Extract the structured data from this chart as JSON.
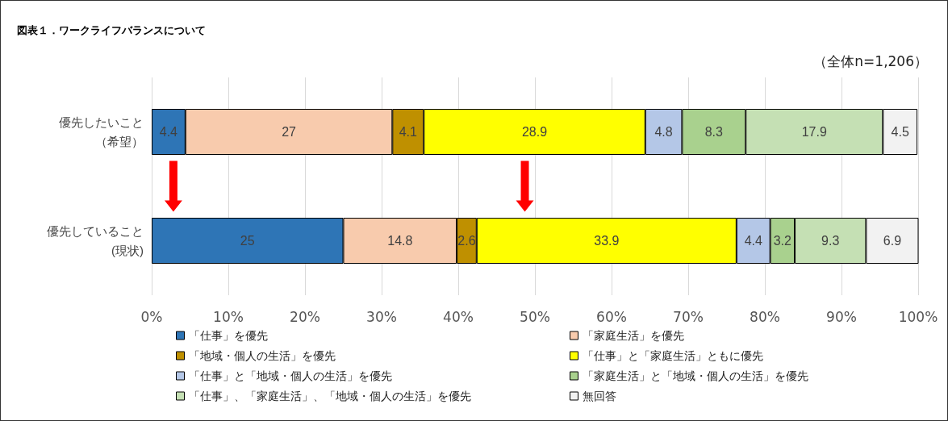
{
  "chart_data": {
    "type": "bar",
    "orientation": "horizontal",
    "stacked": true,
    "title": "図表１．ワークライフバランスについて",
    "annotations": [
      "（全体n=1,206）"
    ],
    "categories": [
      "優先したいこと（希望）",
      "優先していること(現状)"
    ],
    "series": [
      {
        "name": "「仕事」を優先",
        "color": "#2e75b6",
        "values": [
          4.4,
          25
        ]
      },
      {
        "name": "「家庭生活」を優先",
        "color": "#f8cbad",
        "values": [
          27,
          14.8
        ]
      },
      {
        "name": "「地域・個人の生活」を優先",
        "color": "#bf9000",
        "values": [
          4.1,
          2.6
        ]
      },
      {
        "name": "「仕事」と「家庭生活」ともに優先",
        "color": "#ffff00",
        "values": [
          28.9,
          33.9
        ]
      },
      {
        "name": "「仕事」と「地域・個人の生活」を優先",
        "color": "#b4c7e7",
        "values": [
          4.8,
          4.4
        ]
      },
      {
        "name": "「家庭生活」と「地域・個人の生活」を優先",
        "color": "#a9d18e",
        "values": [
          8.3,
          3.2
        ]
      },
      {
        "name": "「仕事」、「家庭生活」、「地域・個人の生活」を優先",
        "color": "#c5e0b4",
        "values": [
          17.9,
          9.3
        ]
      },
      {
        "name": "無回答",
        "color": "#f2f2f2",
        "values": [
          4.5,
          6.9
        ]
      }
    ],
    "xlim": [
      0,
      100
    ],
    "xticks": [
      {
        "value": 0,
        "label": "0%"
      },
      {
        "value": 10,
        "label": "10%"
      },
      {
        "value": 20,
        "label": "20%"
      },
      {
        "value": 30,
        "label": "30%"
      },
      {
        "value": 40,
        "label": "40%"
      },
      {
        "value": 50,
        "label": "50%"
      },
      {
        "value": 60,
        "label": "60%"
      },
      {
        "value": 70,
        "label": "70%"
      },
      {
        "value": 80,
        "label": "80%"
      },
      {
        "value": 90,
        "label": "90%"
      },
      {
        "value": 100,
        "label": "100%"
      }
    ],
    "grid": "x",
    "data_labels": true,
    "legend": "bottom"
  }
}
